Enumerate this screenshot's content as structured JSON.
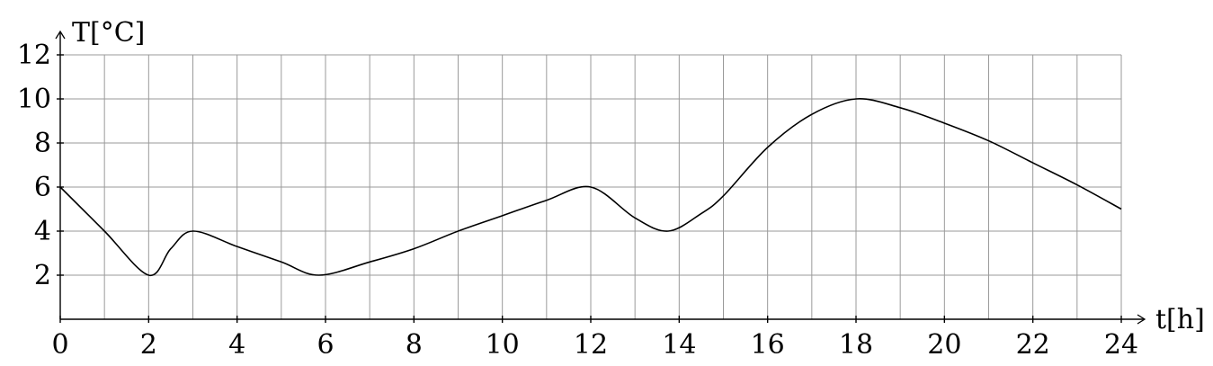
{
  "chart_data": {
    "type": "line",
    "title": "",
    "xlabel": "t[h]",
    "ylabel": "T[°C]",
    "xlim": [
      0,
      24
    ],
    "ylim": [
      0,
      12
    ],
    "x_ticks": [
      0,
      2,
      4,
      6,
      8,
      10,
      12,
      14,
      16,
      18,
      20,
      22,
      24
    ],
    "y_ticks": [
      2,
      4,
      6,
      8,
      10,
      12
    ],
    "x_tick_labels": [
      "0",
      "2",
      "4",
      "6",
      "8",
      "10",
      "12",
      "14",
      "16",
      "18",
      "20",
      "22",
      "24"
    ],
    "y_tick_labels": [
      "2",
      "4",
      "6",
      "8",
      "10",
      "12"
    ],
    "grid": true,
    "grid_step_x": 1,
    "grid_step_y": 2,
    "series": [
      {
        "x": [
          0,
          1,
          2,
          2.5,
          3,
          4,
          5,
          5.85,
          7,
          8,
          9,
          10,
          11,
          12,
          13,
          13.75,
          14.5,
          15,
          16,
          17,
          18,
          19,
          20,
          21,
          22,
          23,
          24
        ],
        "y": [
          6,
          4,
          2,
          3.2,
          4,
          3.3,
          2.6,
          2,
          2.6,
          3.2,
          4,
          4.7,
          5.4,
          6,
          4.6,
          4,
          4.8,
          5.6,
          7.8,
          9.3,
          10,
          9.6,
          8.9,
          8.1,
          7.1,
          6.1,
          5
        ]
      }
    ],
    "line_color": "#000000",
    "grid_color": "#9a9a9a"
  }
}
